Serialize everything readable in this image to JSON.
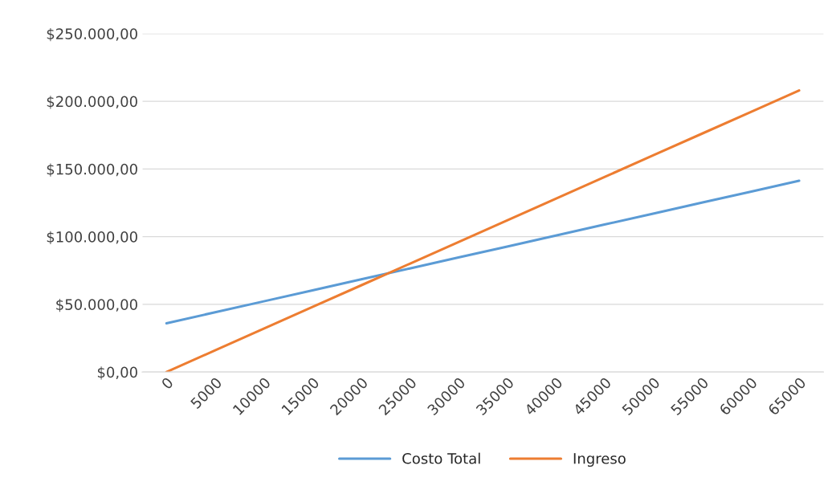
{
  "chart_data": {
    "type": "line",
    "categories": [
      "0",
      "5000",
      "10000",
      "15000",
      "20000",
      "25000",
      "30000",
      "35000",
      "40000",
      "45000",
      "50000",
      "55000",
      "60000",
      "65000"
    ],
    "series": [
      {
        "name": "Costo Total",
        "color": "#5b9bd5",
        "values": [
          36000,
          44100,
          52200,
          60300,
          68400,
          76500,
          84600,
          92700,
          100800,
          108900,
          117000,
          125100,
          133200,
          141300
        ]
      },
      {
        "name": "Ingreso",
        "color": "#ed7d31",
        "values": [
          0,
          16000,
          32000,
          48000,
          64000,
          80000,
          96000,
          112000,
          128000,
          144000,
          160000,
          176000,
          192000,
          208000
        ]
      }
    ],
    "ylim": [
      0,
      250000
    ],
    "yticks": [
      {
        "value": 0,
        "label": "$0,00"
      },
      {
        "value": 50000,
        "label": "$50.000,00"
      },
      {
        "value": 100000,
        "label": "$100.000,00"
      },
      {
        "value": 150000,
        "label": "$150.000,00"
      },
      {
        "value": 200000,
        "label": "$200.000,00"
      },
      {
        "value": 250000,
        "label": "$250.000,00"
      }
    ],
    "grid": "y",
    "legend": "bottom",
    "marker": "none",
    "line_style": "solid"
  }
}
